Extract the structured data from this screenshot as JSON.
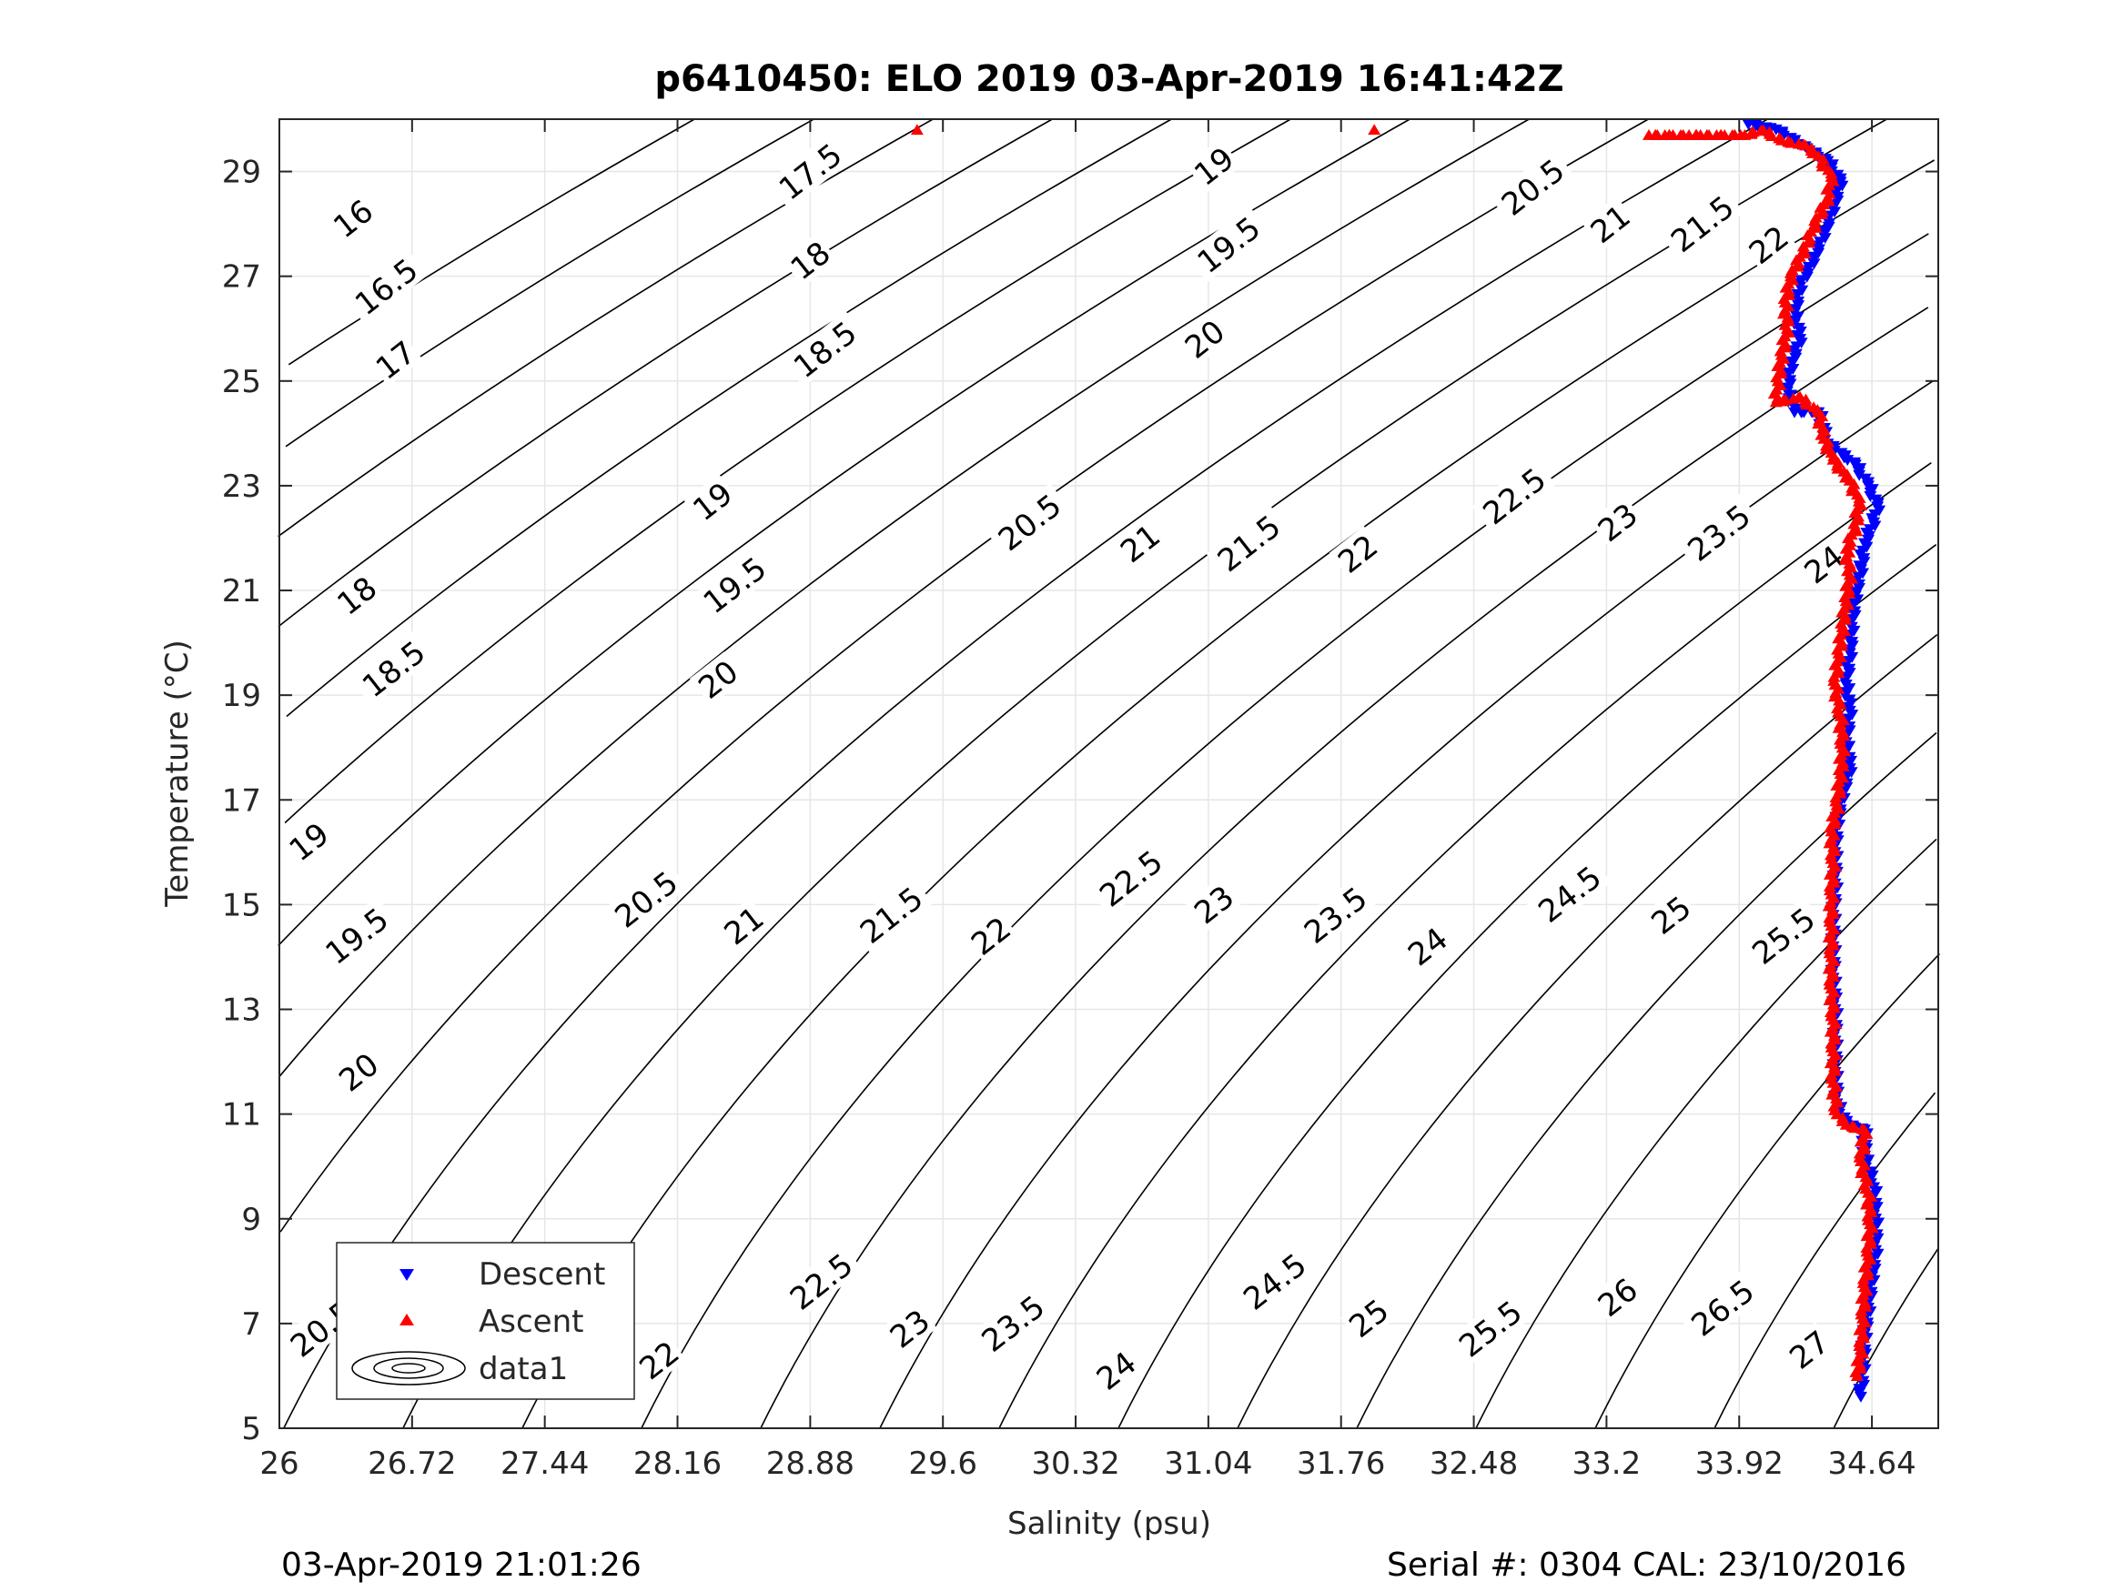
{
  "chart_data": {
    "type": "scatter",
    "title": "p6410450: ELO 2019 03-Apr-2019 16:41:42Z",
    "xlabel": "Salinity (psu)",
    "ylabel": "Temperature (°C)",
    "xlim": [
      26,
      35.0
    ],
    "ylim": [
      5,
      30
    ],
    "xticks": [
      26,
      26.72,
      27.44,
      28.16,
      28.88,
      29.6,
      30.32,
      31.04,
      31.76,
      32.48,
      33.2,
      33.92,
      34.64
    ],
    "xtick_labels": [
      "26",
      "26.72",
      "27.44",
      "28.16",
      "28.88",
      "29.6",
      "30.32",
      "31.04",
      "31.76",
      "32.48",
      "33.2",
      "33.92",
      "34.64"
    ],
    "yticks": [
      5,
      7,
      9,
      11,
      13,
      15,
      17,
      19,
      21,
      23,
      25,
      27,
      29
    ],
    "ytick_labels": [
      "5",
      "7",
      "9",
      "11",
      "13",
      "15",
      "17",
      "19",
      "21",
      "23",
      "25",
      "27",
      "29"
    ],
    "grid": true,
    "legend_position": "bottom-left",
    "legend": [
      "Descent",
      "Ascent",
      "data1"
    ],
    "isopycnal_levels": [
      16,
      16.5,
      17,
      17.5,
      18,
      18.5,
      19,
      19.5,
      20,
      20.5,
      21,
      21.5,
      22,
      22.5,
      23,
      23.5,
      24,
      24.5,
      25,
      25.5,
      26,
      26.5,
      27
    ],
    "isopycnal_labels": [
      {
        "text": "16",
        "s": 26.4,
        "t": 28.1
      },
      {
        "text": "16.5",
        "s": 26.58,
        "t": 26.8
      },
      {
        "text": "17",
        "s": 26.63,
        "t": 25.4
      },
      {
        "text": "17.5",
        "s": 28.88,
        "t": 29.0
      },
      {
        "text": "18",
        "s": 28.88,
        "t": 27.3
      },
      {
        "text": "18.5",
        "s": 28.96,
        "t": 25.6
      },
      {
        "text": "19",
        "s": 31.07,
        "t": 29.1
      },
      {
        "text": "19.5",
        "s": 31.15,
        "t": 27.6
      },
      {
        "text": "20",
        "s": 31.02,
        "t": 25.8
      },
      {
        "text": "20.5",
        "s": 32.8,
        "t": 28.7
      },
      {
        "text": "21",
        "s": 33.22,
        "t": 28.0
      },
      {
        "text": "21.5",
        "s": 33.72,
        "t": 28.0
      },
      {
        "text": "22",
        "s": 34.08,
        "t": 27.6
      },
      {
        "text": "18",
        "s": 26.42,
        "t": 20.9
      },
      {
        "text": "18.5",
        "s": 26.62,
        "t": 19.5
      },
      {
        "text": "19",
        "s": 28.35,
        "t": 22.7
      },
      {
        "text": "19.5",
        "s": 28.47,
        "t": 21.1
      },
      {
        "text": "20",
        "s": 28.38,
        "t": 19.3
      },
      {
        "text": "20.5",
        "s": 30.07,
        "t": 22.3
      },
      {
        "text": "21",
        "s": 30.67,
        "t": 21.9
      },
      {
        "text": "21.5",
        "s": 31.26,
        "t": 21.9
      },
      {
        "text": "22",
        "s": 31.85,
        "t": 21.7
      },
      {
        "text": "22.5",
        "s": 32.7,
        "t": 22.8
      },
      {
        "text": "23",
        "s": 33.26,
        "t": 22.3
      },
      {
        "text": "23.5",
        "s": 33.81,
        "t": 22.1
      },
      {
        "text": "24",
        "s": 34.38,
        "t": 21.5
      },
      {
        "text": "19",
        "s": 26.16,
        "t": 16.2
      },
      {
        "text": "19.5",
        "s": 26.42,
        "t": 14.4
      },
      {
        "text": "20",
        "s": 26.43,
        "t": 11.8
      },
      {
        "text": "20.5",
        "s": 26.23,
        "t": 6.9
      },
      {
        "text": "20.5",
        "s": 27.99,
        "t": 15.1
      },
      {
        "text": "21",
        "s": 28.52,
        "t": 14.6
      },
      {
        "text": "21.5",
        "s": 29.32,
        "t": 14.8
      },
      {
        "text": "22",
        "s": 29.86,
        "t": 14.4
      },
      {
        "text": "22.5",
        "s": 30.62,
        "t": 15.5
      },
      {
        "text": "23",
        "s": 31.07,
        "t": 15.0
      },
      {
        "text": "23.5",
        "s": 31.73,
        "t": 14.8
      },
      {
        "text": "24",
        "s": 32.23,
        "t": 14.2
      },
      {
        "text": "24.5",
        "s": 33.0,
        "t": 15.2
      },
      {
        "text": "25",
        "s": 33.55,
        "t": 14.8
      },
      {
        "text": "25.5",
        "s": 34.16,
        "t": 14.4
      },
      {
        "text": "21",
        "s": 26.76,
        "t": 6.3
      },
      {
        "text": "21.5",
        "s": 27.39,
        "t": 6.8
      },
      {
        "text": "22",
        "s": 28.06,
        "t": 6.3
      },
      {
        "text": "22.5",
        "s": 28.94,
        "t": 7.8
      },
      {
        "text": "23",
        "s": 29.42,
        "t": 6.9
      },
      {
        "text": "23.5",
        "s": 29.98,
        "t": 7.0
      },
      {
        "text": "24",
        "s": 30.54,
        "t": 6.1
      },
      {
        "text": "24.5",
        "s": 31.4,
        "t": 7.8
      },
      {
        "text": "25",
        "s": 31.91,
        "t": 7.1
      },
      {
        "text": "25.5",
        "s": 32.57,
        "t": 6.9
      },
      {
        "text": "26",
        "s": 33.26,
        "t": 7.5
      },
      {
        "text": "26.5",
        "s": 33.83,
        "t": 7.3
      },
      {
        "text": "27",
        "s": 34.3,
        "t": 6.5
      }
    ],
    "series": [
      {
        "name": "Descent",
        "color": "#0000ff",
        "marker": "triangle-down",
        "points": [
          [
            33.97,
            29.9
          ],
          [
            34.12,
            29.8
          ],
          [
            34.3,
            29.4
          ],
          [
            34.4,
            29.2
          ],
          [
            34.47,
            28.8
          ],
          [
            34.43,
            28.3
          ],
          [
            34.38,
            27.8
          ],
          [
            34.32,
            27.3
          ],
          [
            34.25,
            26.8
          ],
          [
            34.22,
            26.3
          ],
          [
            34.25,
            25.8
          ],
          [
            34.2,
            25.3
          ],
          [
            34.18,
            24.8
          ],
          [
            34.22,
            24.4
          ],
          [
            34.35,
            24.4
          ],
          [
            34.4,
            23.8
          ],
          [
            34.55,
            23.4
          ],
          [
            34.62,
            23.0
          ],
          [
            34.67,
            22.6
          ],
          [
            34.65,
            22.3
          ],
          [
            34.6,
            21.9
          ],
          [
            34.58,
            21.4
          ],
          [
            34.55,
            20.9
          ],
          [
            34.53,
            20.3
          ],
          [
            34.52,
            19.8
          ],
          [
            34.5,
            19.2
          ],
          [
            34.52,
            18.7
          ],
          [
            34.5,
            18.1
          ],
          [
            34.52,
            17.6
          ],
          [
            34.48,
            17.1
          ],
          [
            34.45,
            16.6
          ],
          [
            34.44,
            16.0
          ],
          [
            34.44,
            15.4
          ],
          [
            34.43,
            14.8
          ],
          [
            34.43,
            14.2
          ],
          [
            34.43,
            13.6
          ],
          [
            34.44,
            13.0
          ],
          [
            34.44,
            12.4
          ],
          [
            34.44,
            11.8
          ],
          [
            34.45,
            11.2
          ],
          [
            34.5,
            10.8
          ],
          [
            34.6,
            10.7
          ],
          [
            34.6,
            10.2
          ],
          [
            34.65,
            9.6
          ],
          [
            34.66,
            9.0
          ],
          [
            34.66,
            8.4
          ],
          [
            34.64,
            7.9
          ],
          [
            34.62,
            7.3
          ],
          [
            34.6,
            6.8
          ],
          [
            34.59,
            6.2
          ],
          [
            34.58,
            5.6
          ]
        ]
      },
      {
        "name": "Ascent",
        "color": "#ff0000",
        "marker": "triangle-up",
        "points": [
          [
            29.46,
            29.8
          ],
          [
            31.94,
            29.8
          ],
          [
            33.43,
            29.7
          ],
          [
            33.71,
            29.7
          ],
          [
            33.95,
            29.7
          ],
          [
            34.05,
            29.8
          ],
          [
            34.15,
            29.6
          ],
          [
            34.28,
            29.5
          ],
          [
            34.35,
            29.3
          ],
          [
            34.42,
            28.9
          ],
          [
            34.4,
            28.5
          ],
          [
            34.33,
            28.0
          ],
          [
            34.27,
            27.5
          ],
          [
            34.2,
            27.0
          ],
          [
            34.17,
            26.5
          ],
          [
            34.18,
            26.0
          ],
          [
            34.15,
            25.5
          ],
          [
            34.13,
            25.0
          ],
          [
            34.12,
            24.6
          ],
          [
            34.25,
            24.7
          ],
          [
            34.35,
            24.4
          ],
          [
            34.38,
            23.9
          ],
          [
            34.43,
            23.5
          ],
          [
            34.52,
            23.1
          ],
          [
            34.57,
            22.7
          ],
          [
            34.55,
            22.2
          ],
          [
            34.5,
            21.8
          ],
          [
            34.52,
            21.3
          ],
          [
            34.5,
            20.8
          ],
          [
            34.48,
            20.3
          ],
          [
            34.46,
            19.8
          ],
          [
            34.44,
            19.2
          ],
          [
            34.47,
            18.6
          ],
          [
            34.48,
            18.0
          ],
          [
            34.47,
            17.5
          ],
          [
            34.45,
            16.9
          ],
          [
            34.42,
            16.4
          ],
          [
            34.43,
            15.8
          ],
          [
            34.42,
            15.2
          ],
          [
            34.42,
            14.6
          ],
          [
            34.42,
            14.0
          ],
          [
            34.42,
            13.4
          ],
          [
            34.43,
            12.8
          ],
          [
            34.43,
            12.2
          ],
          [
            34.43,
            11.6
          ],
          [
            34.45,
            11.0
          ],
          [
            34.5,
            10.8
          ],
          [
            34.6,
            10.7
          ],
          [
            34.58,
            10.1
          ],
          [
            34.62,
            9.5
          ],
          [
            34.63,
            8.9
          ],
          [
            34.62,
            8.3
          ],
          [
            34.6,
            7.7
          ],
          [
            34.59,
            7.1
          ],
          [
            34.58,
            6.5
          ],
          [
            34.56,
            6.0
          ]
        ]
      }
    ]
  },
  "legend": {
    "descent_label": "Descent",
    "ascent_label": "Ascent",
    "data1_label": "data1"
  },
  "footer": {
    "left_text": "03-Apr-2019 21:01:26",
    "right_text": "Serial #: 0304  CAL: 23/10/2016"
  }
}
